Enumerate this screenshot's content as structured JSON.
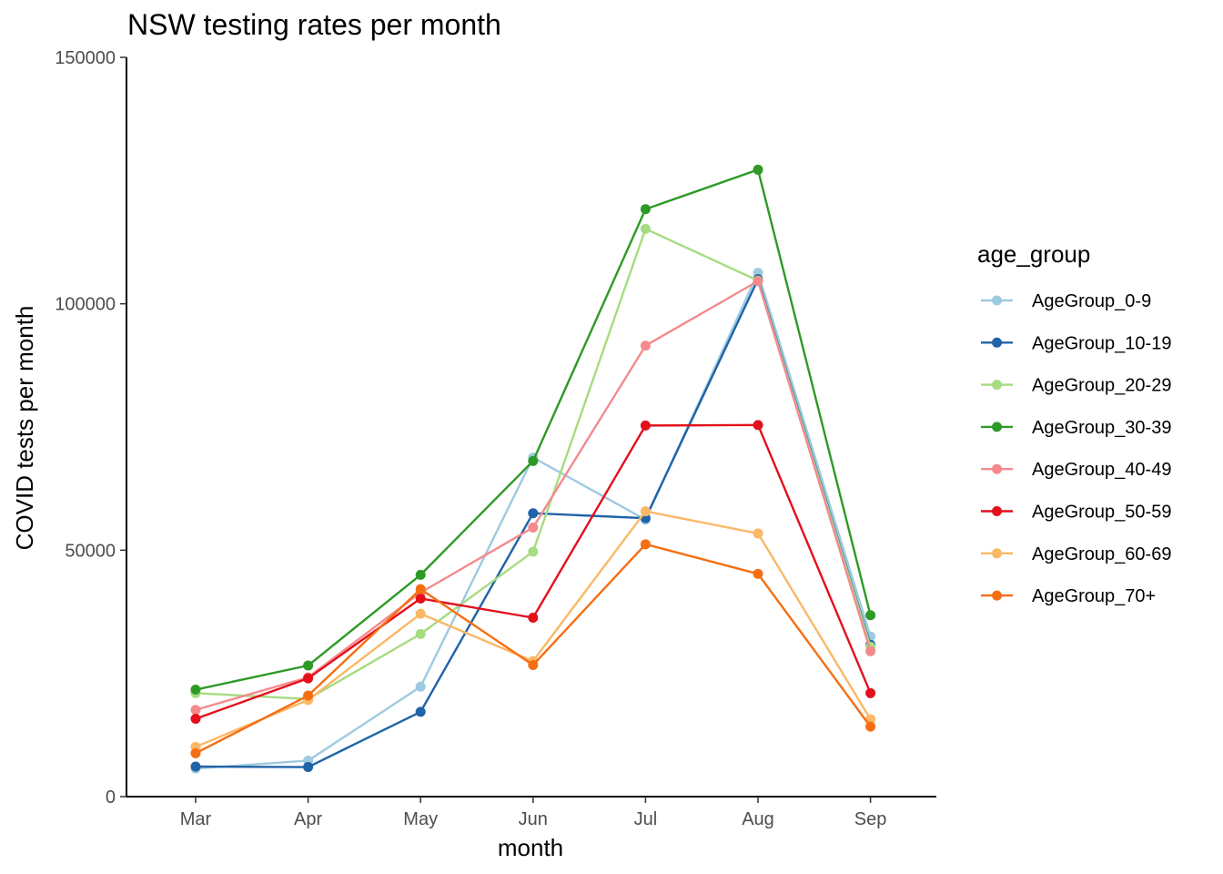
{
  "chart_data": {
    "type": "line",
    "title": "NSW testing rates per month",
    "xlabel": "month",
    "ylabel": "COVID tests per month",
    "categories": [
      "Mar",
      "Apr",
      "May",
      "Jun",
      "Jul",
      "Aug",
      "Sep"
    ],
    "ylim": [
      0,
      150000
    ],
    "yticks": [
      0,
      50000,
      100000,
      150000
    ],
    "grid": false,
    "legend_title": "age_group",
    "legend_position": "right",
    "series": [
      {
        "name": "AgeGroup_0-9",
        "color": "#9ecae1",
        "values": [
          5700,
          7300,
          22300,
          68800,
          56200,
          106300,
          32500
        ]
      },
      {
        "name": "AgeGroup_10-19",
        "color": "#1f63a8",
        "values": [
          6100,
          6000,
          17200,
          57500,
          56500,
          105000,
          30800
        ]
      },
      {
        "name": "AgeGroup_20-29",
        "color": "#a6dc82",
        "values": [
          21000,
          19800,
          33000,
          49700,
          115200,
          104700,
          30400
        ]
      },
      {
        "name": "AgeGroup_30-39",
        "color": "#2d9a26",
        "values": [
          21700,
          26600,
          45000,
          68100,
          119200,
          127200,
          36800
        ]
      },
      {
        "name": "AgeGroup_40-49",
        "color": "#f48a8c",
        "values": [
          17600,
          24200,
          41400,
          54600,
          91500,
          104600,
          29500
        ]
      },
      {
        "name": "AgeGroup_50-59",
        "color": "#e3101c",
        "values": [
          15800,
          24000,
          40200,
          36300,
          75300,
          75400,
          21000
        ]
      },
      {
        "name": "AgeGroup_60-69",
        "color": "#fbb866",
        "values": [
          10100,
          19600,
          37100,
          27500,
          57900,
          53400,
          15700
        ]
      },
      {
        "name": "AgeGroup_70+",
        "color": "#f66e12",
        "values": [
          8800,
          20500,
          42100,
          26700,
          51200,
          45200,
          14200
        ]
      }
    ]
  }
}
